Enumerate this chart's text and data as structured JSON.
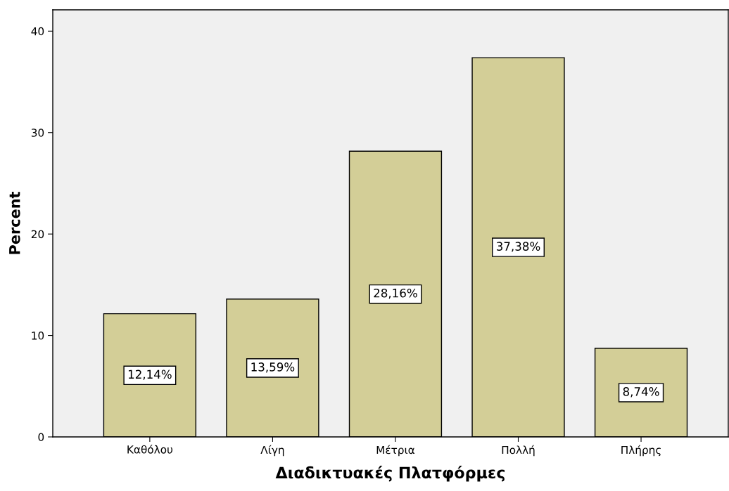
{
  "chart_data": {
    "type": "bar",
    "xlabel": "Διαδικτυακές Πλατφόρμες",
    "ylabel": "Percent",
    "categories": [
      "Καθόλου",
      "Λίγη",
      "Μέτρια",
      "Πολλή",
      "Πλήρης"
    ],
    "values": [
      12.14,
      13.59,
      28.16,
      37.38,
      8.74
    ],
    "value_labels": [
      "12,14%",
      "13,59%",
      "28,16%",
      "37,38%",
      "8,74%"
    ],
    "color": "#d3ce97",
    "ylim": [
      0,
      42.1
    ],
    "yticks": [
      0,
      10,
      20,
      30,
      40
    ],
    "grid": false,
    "legend": false
  }
}
